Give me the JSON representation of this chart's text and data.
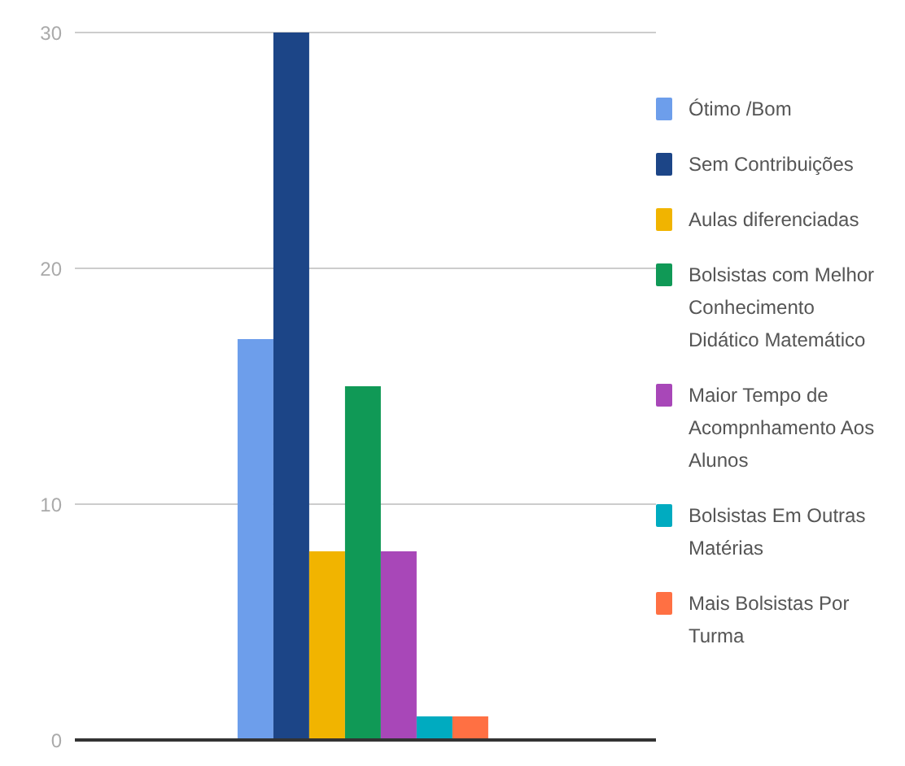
{
  "chart_data": {
    "type": "bar",
    "categories": [
      null
    ],
    "series": [
      {
        "name": "Ótimo /Bom",
        "color": "#6d9eeb",
        "values": [
          17
        ]
      },
      {
        "name": "Sem Contribuições",
        "color": "#1c4587",
        "values": [
          30
        ]
      },
      {
        "name": "Aulas diferenciadas",
        "color": "#f1b400",
        "values": [
          8
        ]
      },
      {
        "name": "Bolsistas com Melhor Conhecimento Didático Matemático",
        "color": "#109956",
        "values": [
          15
        ]
      },
      {
        "name": "Maior Tempo de Acompnhamento Aos Alunos",
        "color": "#a847b8",
        "values": [
          8
        ]
      },
      {
        "name": "Bolsistas Em Outras Matérias",
        "color": "#00abc0",
        "values": [
          1
        ]
      },
      {
        "name": "Mais Bolsistas Por Turma",
        "color": "#ff7043",
        "values": [
          1
        ]
      }
    ],
    "ylim": [
      0,
      30
    ],
    "yticks": [
      0,
      10,
      20,
      30
    ],
    "grid": "y",
    "legend": "right",
    "tick_labels": "y"
  }
}
